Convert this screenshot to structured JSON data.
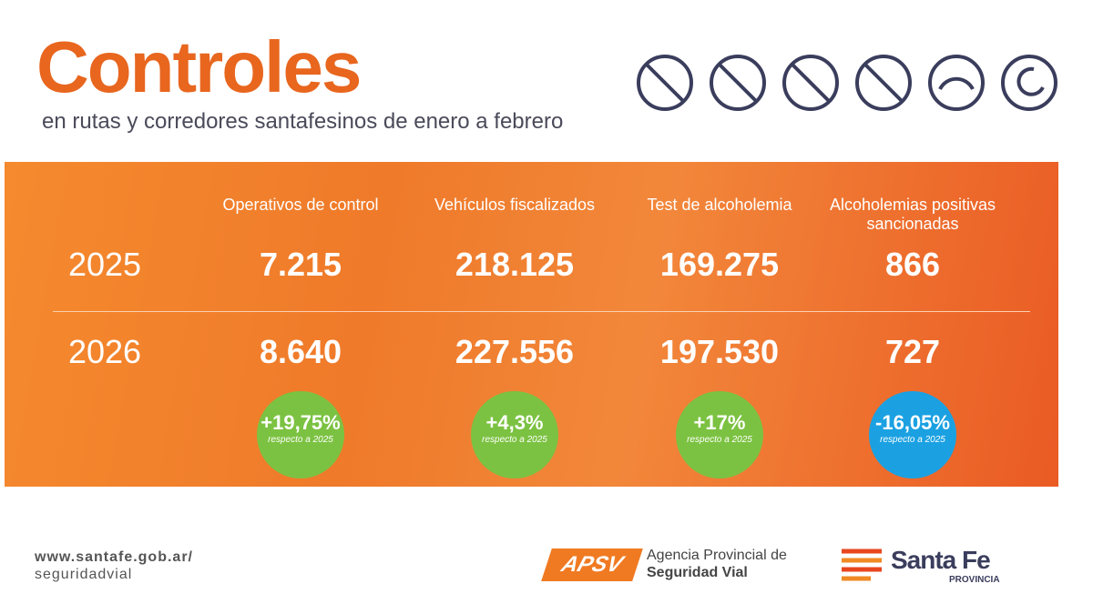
{
  "header": {
    "title": "Controles",
    "subtitle": "en rutas y corredores santafesinos de enero a febrero"
  },
  "table": {
    "columns": [
      "Operativos de control",
      "Vehículos fiscalizados",
      "Test de alcoholemia",
      "Alcoholemias positivas sancionadas"
    ],
    "rows": [
      {
        "year": "2025",
        "values": [
          "7.215",
          "218.125",
          "169.275",
          "866"
        ]
      },
      {
        "year": "2026",
        "values": [
          "8.640",
          "227.556",
          "197.530",
          "727"
        ]
      }
    ],
    "changes": [
      {
        "value": "+19,75%",
        "note": "respecto a 2025",
        "color": "#7cc242"
      },
      {
        "value": "+4,3%",
        "note": "respecto a 2025",
        "color": "#7cc242"
      },
      {
        "value": "+17%",
        "note": "respecto a 2025",
        "color": "#7cc242"
      },
      {
        "value": "-16,05%",
        "note": "respecto a 2025",
        "color": "#1ba1e2"
      }
    ]
  },
  "footer": {
    "url": "www.santafe.gob.ar/",
    "path": "seguridadvial",
    "apsv": {
      "logo": "APSV",
      "line1": "Agencia Provincial de",
      "line2": "Seguridad Vial"
    },
    "province": {
      "name": "Santa Fe",
      "sub": "PROVINCIA"
    }
  }
}
